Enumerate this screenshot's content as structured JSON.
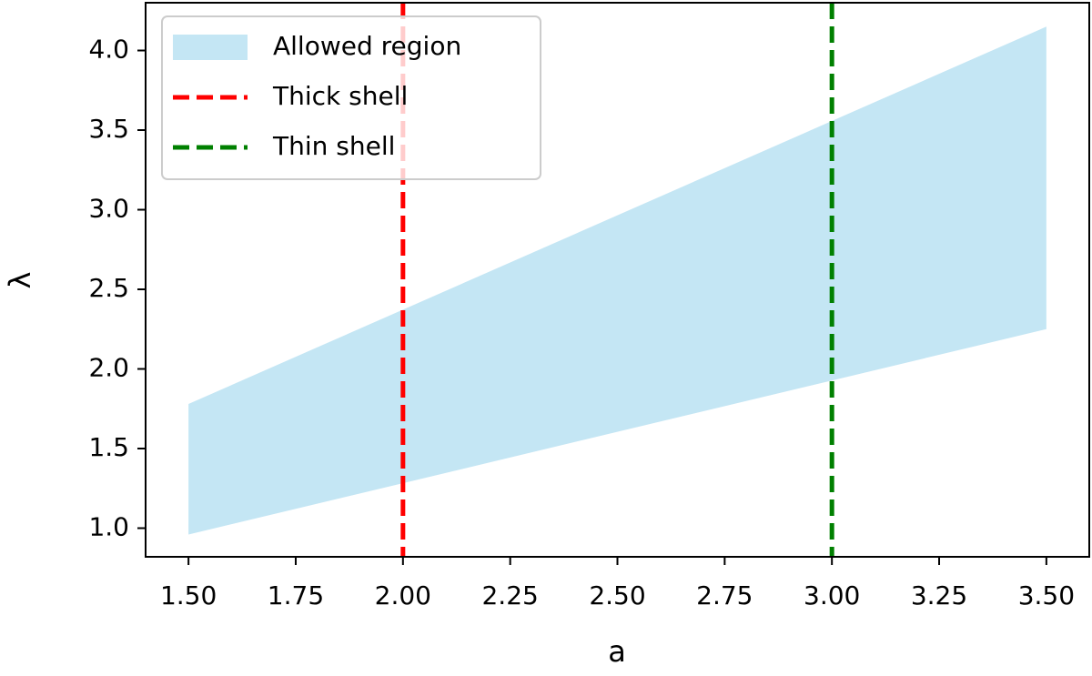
{
  "chart_data": {
    "type": "area",
    "xlabel": "a",
    "ylabel": "λ",
    "x": [
      1.5,
      3.5
    ],
    "series": [
      {
        "name": "Allowed region",
        "color": "#c4e6f4",
        "lower": [
          0.96,
          2.25
        ],
        "upper": [
          1.78,
          4.15
        ]
      }
    ],
    "vlines": [
      {
        "name": "Thick shell",
        "color": "#ff0000",
        "x": 2.0
      },
      {
        "name": "Thin shell",
        "color": "#008000",
        "x": 3.0
      }
    ],
    "xlim": [
      1.4,
      3.6
    ],
    "ylim": [
      0.82,
      4.3
    ],
    "xticks": [
      {
        "value": 1.5,
        "label": "1.50"
      },
      {
        "value": 1.75,
        "label": "1.75"
      },
      {
        "value": 2.0,
        "label": "2.00"
      },
      {
        "value": 2.25,
        "label": "2.25"
      },
      {
        "value": 2.5,
        "label": "2.50"
      },
      {
        "value": 2.75,
        "label": "2.75"
      },
      {
        "value": 3.0,
        "label": "3.00"
      },
      {
        "value": 3.25,
        "label": "3.25"
      },
      {
        "value": 3.5,
        "label": "3.50"
      }
    ],
    "yticks": [
      {
        "value": 1.0,
        "label": "1.0"
      },
      {
        "value": 1.5,
        "label": "1.5"
      },
      {
        "value": 2.0,
        "label": "2.0"
      },
      {
        "value": 2.5,
        "label": "2.5"
      },
      {
        "value": 3.0,
        "label": "3.0"
      },
      {
        "value": 3.5,
        "label": "3.5"
      },
      {
        "value": 4.0,
        "label": "4.0"
      }
    ],
    "legend": "upper left"
  }
}
